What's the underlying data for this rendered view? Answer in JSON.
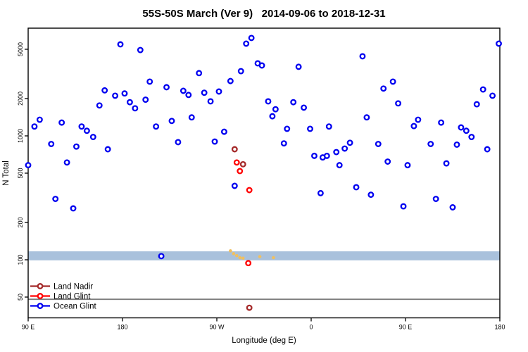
{
  "title": "55S-50S March (Ver 9)   2014-09-06 to 2018-12-31",
  "chart_data": {
    "type": "scatter",
    "title": "55S-50S March (Ver 9)   2014-09-06 to 2018-12-31",
    "x_axis": {
      "label": "Longitude (deg E)",
      "note": "axis_deg runs 90E -> 180 -> 90W -> 0 -> 90E -> 180 (90..540 continuous degrees east)",
      "ticks": [
        {
          "axis_deg": 90,
          "label": "90 E"
        },
        {
          "axis_deg": 180,
          "label": "180"
        },
        {
          "axis_deg": 270,
          "label": "90 W"
        },
        {
          "axis_deg": 360,
          "label": "0"
        },
        {
          "axis_deg": 450,
          "label": "90 E"
        },
        {
          "axis_deg": 540,
          "label": "180"
        }
      ]
    },
    "y_axis": {
      "label": "N Total",
      "scale": "log10",
      "ticks": [
        {
          "n": 50,
          "label": "50"
        },
        {
          "n": 100,
          "label": "100"
        },
        {
          "n": 200,
          "label": "200"
        },
        {
          "n": 500,
          "label": "500"
        },
        {
          "n": 1000,
          "label": "1000"
        },
        {
          "n": 2000,
          "label": "2000"
        },
        {
          "n": 5000,
          "label": "5000"
        }
      ],
      "range": [
        34,
        7400
      ]
    },
    "band": {
      "n_min": 99,
      "n_max": 117,
      "color": "#a9c1dc"
    },
    "refline": {
      "n": 48,
      "color": "#808080"
    },
    "series": [
      {
        "name": "Land Nadir",
        "color": "#a52a2a",
        "marker": "open-circle",
        "in_legend": true,
        "points": [
          [
            287,
            780
          ],
          [
            295,
            590
          ],
          [
            301,
            41
          ]
        ]
      },
      {
        "name": "Land Glint",
        "color": "#ff0000",
        "marker": "open-circle",
        "in_legend": true,
        "points": [
          [
            289,
            610
          ],
          [
            292,
            520
          ],
          [
            301,
            365
          ],
          [
            300,
            94
          ]
        ]
      },
      {
        "name": "Ocean Glint",
        "color": "#0000f0",
        "marker": "open-circle",
        "in_legend": true,
        "points": [
          [
            178,
            5480
          ],
          [
            197,
            4930
          ],
          [
            206,
            2740
          ],
          [
            222,
            2470
          ],
          [
            238,
            2310
          ],
          [
            163,
            2330
          ],
          [
            173,
            2110
          ],
          [
            182,
            2200
          ],
          [
            187,
            1870
          ],
          [
            192,
            1670
          ],
          [
            202,
            1960
          ],
          [
            158,
            1760
          ],
          [
            101,
            1350
          ],
          [
            96,
            1190
          ],
          [
            122,
            1280
          ],
          [
            141,
            1190
          ],
          [
            146,
            1100
          ],
          [
            152,
            980
          ],
          [
            112,
            860
          ],
          [
            136,
            820
          ],
          [
            166,
            780
          ],
          [
            212,
            1190
          ],
          [
            227,
            1320
          ],
          [
            233,
            890
          ],
          [
            127,
            610
          ],
          [
            90,
            580
          ],
          [
            303,
            6170
          ],
          [
            298,
            5550
          ],
          [
            309,
            3850
          ],
          [
            313,
            3700
          ],
          [
            348,
            3610
          ],
          [
            253,
            3210
          ],
          [
            293,
            3330
          ],
          [
            283,
            2770
          ],
          [
            243,
            2140
          ],
          [
            258,
            2230
          ],
          [
            272,
            2280
          ],
          [
            264,
            1900
          ],
          [
            319,
            1900
          ],
          [
            326,
            1640
          ],
          [
            323,
            1440
          ],
          [
            343,
            1870
          ],
          [
            353,
            1690
          ],
          [
            246,
            1410
          ],
          [
            277,
            1080
          ],
          [
            268,
            900
          ],
          [
            337,
            1140
          ],
          [
            359,
            1140
          ],
          [
            377,
            1190
          ],
          [
            334,
            870
          ],
          [
            363,
            690
          ],
          [
            371,
            670
          ],
          [
            375,
            690
          ],
          [
            384,
            740
          ],
          [
            387,
            580
          ],
          [
            392,
            790
          ],
          [
            539,
            5550
          ],
          [
            409,
            4390
          ],
          [
            438,
            2740
          ],
          [
            429,
            2410
          ],
          [
            524,
            2370
          ],
          [
            533,
            2110
          ],
          [
            518,
            1800
          ],
          [
            443,
            1830
          ],
          [
            413,
            1410
          ],
          [
            462,
            1350
          ],
          [
            458,
            1200
          ],
          [
            484,
            1280
          ],
          [
            503,
            1170
          ],
          [
            508,
            1100
          ],
          [
            513,
            980
          ],
          [
            397,
            880
          ],
          [
            424,
            860
          ],
          [
            474,
            860
          ],
          [
            499,
            850
          ],
          [
            528,
            780
          ],
          [
            433,
            620
          ],
          [
            452,
            580
          ],
          [
            489,
            600
          ],
          [
            116,
            310
          ],
          [
            133,
            260
          ],
          [
            217,
            107
          ],
          [
            287,
            395
          ],
          [
            369,
            345
          ],
          [
            403,
            385
          ],
          [
            417,
            335
          ],
          [
            448,
            270
          ],
          [
            479,
            310
          ],
          [
            495,
            265
          ]
        ]
      },
      {
        "name": "unlabeled-yellow-markers",
        "color": "#f0c060",
        "marker": "small-dot",
        "in_legend": false,
        "points": [
          [
            283,
            118
          ],
          [
            286,
            112
          ],
          [
            289,
            108
          ],
          [
            292,
            104
          ],
          [
            295,
            103
          ],
          [
            311,
            106
          ],
          [
            324,
            104
          ]
        ]
      }
    ]
  },
  "legend": {
    "items": [
      {
        "label": "Land Nadir",
        "color": "#a52a2a"
      },
      {
        "label": "Land Glint",
        "color": "#ff0000"
      },
      {
        "label": "Ocean Glint",
        "color": "#0000f0"
      }
    ]
  }
}
